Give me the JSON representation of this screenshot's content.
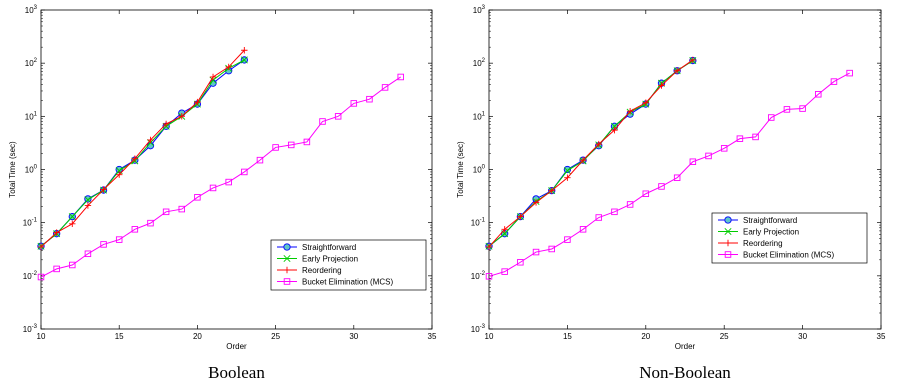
{
  "chart_data": [
    {
      "type": "line",
      "caption": "Boolean",
      "xlabel": "Order",
      "ylabel": "Total Time (sec)",
      "xlim": [
        10,
        35
      ],
      "ylim": [
        0.001,
        1000
      ],
      "yscale": "log",
      "xticks": [
        "10",
        "15",
        "20",
        "25",
        "30",
        "35"
      ],
      "grid": false,
      "legend": "bottom-right",
      "series": [
        {
          "name": "Straightforward",
          "color": "#0000ff",
          "marker": "circle",
          "x": [
            10,
            11,
            12,
            13,
            14,
            15,
            16,
            17,
            18,
            19,
            20,
            21,
            22,
            23
          ],
          "y": [
            0.036,
            0.062,
            0.13,
            0.28,
            0.41,
            1.0,
            1.5,
            2.8,
            6.5,
            11.5,
            17,
            42,
            72,
            115
          ]
        },
        {
          "name": "Early Projection",
          "color": "#00cc00",
          "marker": "x",
          "x": [
            10,
            11,
            12,
            13,
            14,
            15,
            16,
            17,
            18,
            19,
            20,
            21,
            22,
            23
          ],
          "y": [
            0.036,
            0.062,
            0.13,
            0.27,
            0.41,
            0.95,
            1.45,
            3.2,
            6.5,
            10,
            17,
            48,
            80,
            115
          ]
        },
        {
          "name": "Reordering",
          "color": "#ff0000",
          "marker": "plus",
          "x": [
            10,
            11,
            12,
            13,
            14,
            15,
            16,
            17,
            18,
            19,
            20,
            21,
            22,
            23
          ],
          "y": [
            0.035,
            0.065,
            0.095,
            0.21,
            0.42,
            0.8,
            1.6,
            3.6,
            7.2,
            10,
            18.5,
            55,
            85,
            175
          ]
        },
        {
          "name": "Bucket Elimination (MCS)",
          "color": "#ff00ff",
          "marker": "square",
          "x": [
            10,
            11,
            12,
            13,
            14,
            15,
            16,
            17,
            18,
            19,
            20,
            21,
            22,
            23,
            24,
            25,
            26,
            27,
            28,
            29,
            30,
            31,
            32,
            33
          ],
          "y": [
            0.0095,
            0.0135,
            0.016,
            0.026,
            0.039,
            0.048,
            0.075,
            0.098,
            0.16,
            0.18,
            0.3,
            0.45,
            0.58,
            0.9,
            1.5,
            2.6,
            2.9,
            3.3,
            8,
            10,
            17.5,
            21,
            35,
            55
          ]
        }
      ]
    },
    {
      "type": "line",
      "caption": "Non-Boolean",
      "xlabel": "Order",
      "ylabel": "Total Time (sec)",
      "xlim": [
        10,
        35
      ],
      "ylim": [
        0.001,
        1000
      ],
      "yscale": "log",
      "xticks": [
        "10",
        "15",
        "20",
        "25",
        "30",
        "35"
      ],
      "grid": false,
      "legend": "right",
      "series": [
        {
          "name": "Straightforward",
          "color": "#0000ff",
          "marker": "circle",
          "x": [
            10,
            11,
            12,
            13,
            14,
            15,
            16,
            17,
            18,
            19,
            20,
            21,
            22,
            23
          ],
          "y": [
            0.036,
            0.062,
            0.13,
            0.28,
            0.4,
            1.0,
            1.5,
            2.8,
            6.5,
            11,
            17,
            42,
            72,
            112
          ]
        },
        {
          "name": "Early Projection",
          "color": "#00cc00",
          "marker": "x",
          "x": [
            10,
            11,
            12,
            13,
            14,
            15,
            16,
            17,
            18,
            19,
            20,
            21,
            22,
            23
          ],
          "y": [
            0.036,
            0.062,
            0.13,
            0.25,
            0.4,
            0.95,
            1.45,
            2.9,
            6.5,
            12,
            17,
            42,
            72,
            112
          ]
        },
        {
          "name": "Reordering",
          "color": "#ff0000",
          "marker": "plus",
          "x": [
            10,
            11,
            12,
            13,
            14,
            15,
            16,
            17,
            18,
            19,
            20,
            21,
            22,
            23
          ],
          "y": [
            0.035,
            0.075,
            0.13,
            0.24,
            0.4,
            0.7,
            1.5,
            3.0,
            5.5,
            12.5,
            18,
            38,
            72,
            115
          ]
        },
        {
          "name": "Bucket Elimination (MCS)",
          "color": "#ff00ff",
          "marker": "square",
          "x": [
            10,
            11,
            12,
            13,
            14,
            15,
            16,
            17,
            18,
            19,
            20,
            21,
            22,
            23,
            24,
            25,
            26,
            27,
            28,
            29,
            30,
            31,
            32,
            33
          ],
          "y": [
            0.0098,
            0.012,
            0.018,
            0.028,
            0.032,
            0.048,
            0.075,
            0.125,
            0.16,
            0.22,
            0.35,
            0.48,
            0.7,
            1.4,
            1.8,
            2.5,
            3.8,
            4.1,
            9.5,
            13.5,
            14,
            26,
            45,
            65
          ]
        }
      ]
    }
  ]
}
